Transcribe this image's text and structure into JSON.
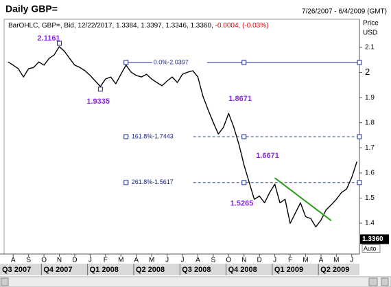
{
  "chart_data": {
    "type": "line",
    "title": "Daily GBP=",
    "date_range": "7/26/2007 - 6/4/2009 (GMT)",
    "info": "BarOHLC, GBP=, Bid, 12/22/2017, 1.3384, 1.3397, 1.3346, 1.3360,",
    "info_change": "-0.0004, (-0.03%)",
    "y_axis_title": "Price",
    "y_axis_unit": "USD",
    "auto_label": "Auto",
    "categories": [
      null,
      "A",
      null,
      null,
      "S",
      null,
      null,
      "O",
      null,
      null,
      "N",
      null,
      null,
      "D",
      null,
      null,
      "J",
      null,
      null,
      "F",
      null,
      null,
      "M",
      null,
      null,
      "A",
      null,
      null,
      "M",
      null,
      null,
      "J",
      null,
      null,
      "J",
      null,
      null,
      "A",
      null,
      null,
      "S",
      null,
      null,
      "O",
      null,
      null,
      "N",
      null,
      null,
      "D",
      null,
      null,
      "J",
      null,
      null,
      "F",
      null,
      null,
      "M",
      null,
      null,
      "A",
      null,
      null,
      "M",
      null,
      null,
      "J",
      null
    ],
    "quarters": [
      "Q3 2007",
      "Q4 2007",
      "Q1 2008",
      "Q2 2008",
      "Q3 2008",
      "Q4 2008",
      "Q1 2009",
      "Q2 2009"
    ],
    "series": [
      {
        "name": "GBP=",
        "color": "#000000",
        "values": [
          2.042,
          2.029,
          2.015,
          1.982,
          2.015,
          2.02,
          2.042,
          2.029,
          2.056,
          2.07,
          2.103,
          2.084,
          2.056,
          2.029,
          2.02,
          2.007,
          1.988,
          1.966,
          1.944,
          1.974,
          1.982,
          1.955,
          1.993,
          2.029,
          2.001,
          1.988,
          1.982,
          1.993,
          1.974,
          1.96,
          1.947,
          1.966,
          1.982,
          1.96,
          1.993,
          2.001,
          2.007,
          1.982,
          1.905,
          1.851,
          1.801,
          1.755,
          1.782,
          1.837,
          1.782,
          1.714,
          1.632,
          1.563,
          1.495,
          1.508,
          1.481,
          1.522,
          1.555,
          1.481,
          1.495,
          1.399,
          1.44,
          1.481,
          1.426,
          1.418,
          1.385,
          1.412,
          1.453,
          1.473,
          1.495,
          1.522,
          1.536,
          1.582,
          1.645
        ]
      }
    ],
    "last_value": 1.336,
    "last_value_label": "1.3360",
    "ylim": [
      1.277,
      2.212
    ],
    "yticks": [
      2.1,
      2,
      1.9,
      1.8,
      1.7,
      1.6,
      1.5,
      1.4
    ],
    "annotations": [
      2.1161,
      1.9335,
      1.8671,
      1.6671,
      1.5265
    ],
    "annotation_color": "#8a2be2",
    "fib_levels": [
      {
        "label": "0.0%-2.0397",
        "value": 2.0397
      },
      {
        "label": "161.8%-1.7443",
        "value": 1.7443
      },
      {
        "label": "261.8%-1.5617",
        "value": 1.5617
      }
    ],
    "fib_color": "#1a2a8c",
    "trendline": {
      "color": "#2e9a1e",
      "values": [
        1.58,
        1.41
      ]
    }
  }
}
